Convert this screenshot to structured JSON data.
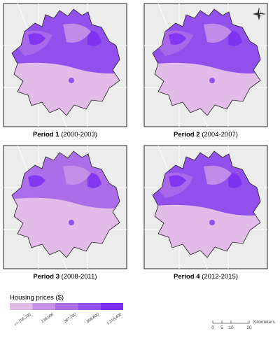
{
  "panels": [
    {
      "period": "Period 1",
      "years": "(2000-2003)"
    },
    {
      "period": "Period 2",
      "years": "(2004-2007)"
    },
    {
      "period": "Period 3",
      "years": "(2008-2011)"
    },
    {
      "period": "Period 4",
      "years": "(2012-2015)"
    }
  ],
  "legend": {
    "title": "Housing prices ($)",
    "labels": [
      "<= 136,700",
      "236,900",
      "387,700",
      "598,600",
      "1,218,400"
    ],
    "colors": [
      "#e2bbe8",
      "#c792e8",
      "#ac6ee8",
      "#9150ec",
      "#7a2ef2"
    ]
  },
  "scale_bar": {
    "labels": [
      "0",
      "5",
      "10",
      "20"
    ],
    "unit": "Kilometers"
  }
}
